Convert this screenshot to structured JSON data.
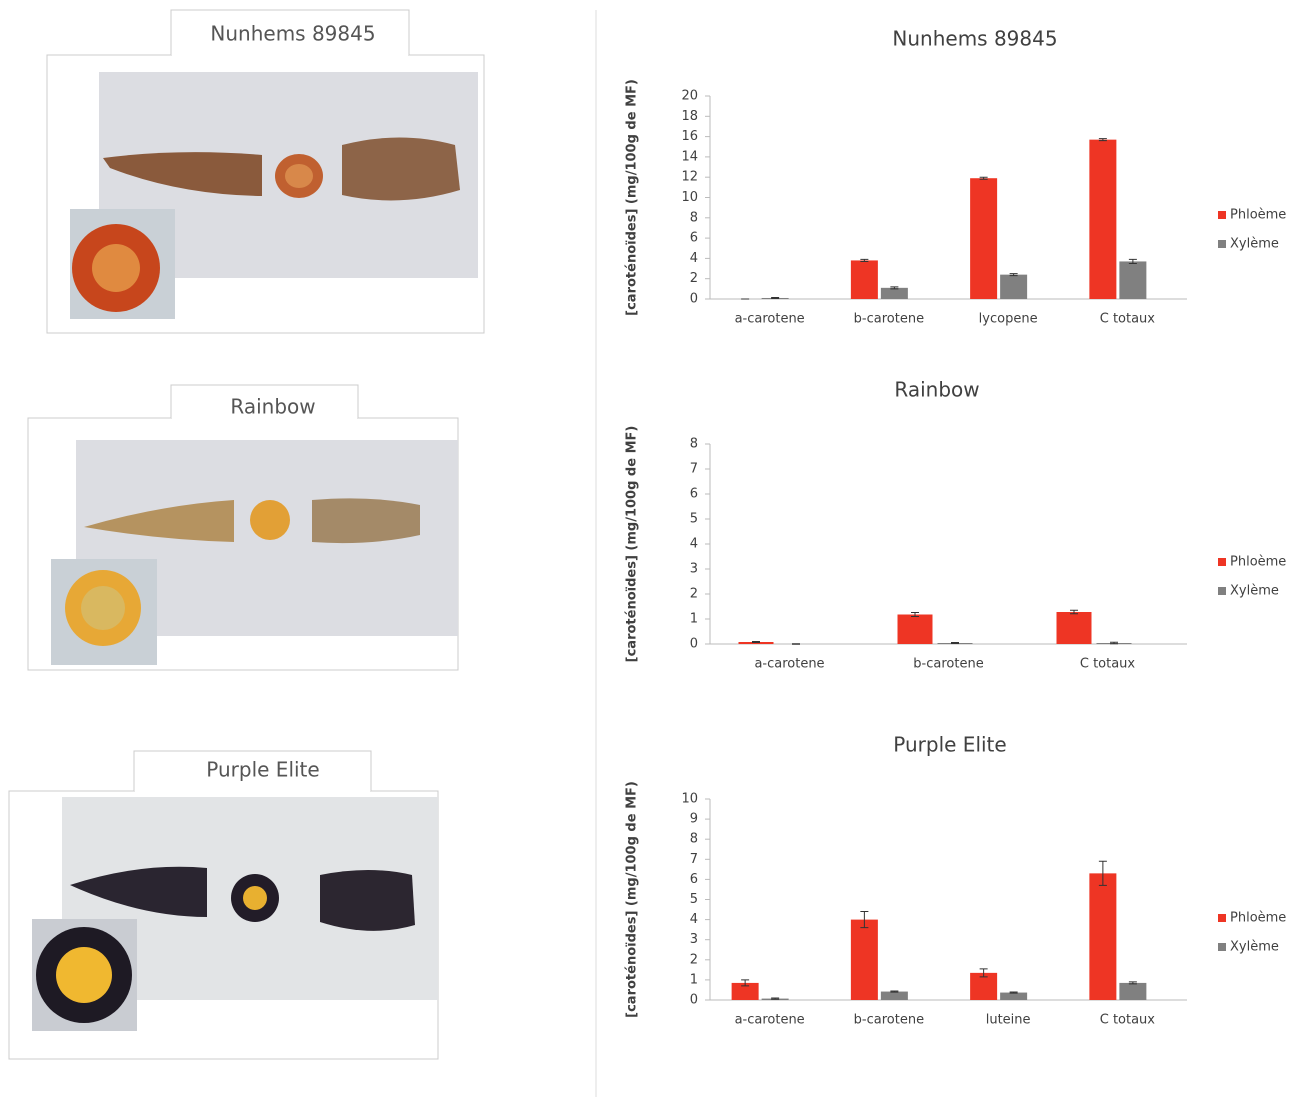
{
  "photos": [
    {
      "label": "Nunhems 89845"
    },
    {
      "label": "Rainbow"
    },
    {
      "label": "Purple Elite"
    }
  ],
  "chart_data": [
    {
      "type": "bar",
      "title": "Nunhems 89845",
      "y_label": "[caroténoïdes] (mg/100g de MF)",
      "categories": [
        "a-carotene",
        "b-carotene",
        "lycopene",
        "C totaux"
      ],
      "series": [
        {
          "name": "Phloème",
          "color": "#ee3524",
          "values": [
            0,
            3.8,
            11.9,
            15.7
          ],
          "errors": [
            0,
            0.1,
            0.1,
            0.1
          ]
        },
        {
          "name": "Xylème",
          "color": "#808080",
          "values": [
            0.1,
            1.1,
            2.4,
            3.7
          ],
          "errors": [
            0.05,
            0.1,
            0.1,
            0.2
          ]
        }
      ],
      "ylim": [
        0,
        20
      ],
      "yticks": [
        0,
        2,
        4,
        6,
        8,
        10,
        12,
        14,
        16,
        18,
        20
      ],
      "legend": "right"
    },
    {
      "type": "bar",
      "title": "Rainbow",
      "y_label": "[caroténoïdes] (mg/100g de MF)",
      "categories": [
        "a-carotene",
        "b-carotene",
        "C totaux"
      ],
      "series": [
        {
          "name": "Phloème",
          "color": "#ee3524",
          "values": [
            0.08,
            1.18,
            1.28
          ],
          "errors": [
            0.02,
            0.08,
            0.07
          ]
        },
        {
          "name": "Xylème",
          "color": "#808080",
          "values": [
            0,
            0.04,
            0.04
          ],
          "errors": [
            0.01,
            0.02,
            0.03
          ]
        }
      ],
      "ylim": [
        0,
        8
      ],
      "yticks": [
        0,
        1,
        2,
        3,
        4,
        5,
        6,
        7,
        8
      ],
      "legend": "right"
    },
    {
      "type": "bar",
      "title": "Purple Elite",
      "y_label": "[caroténoïdes] (mg/100g de MF)",
      "categories": [
        "a-carotene",
        "b-carotene",
        "luteine",
        "C totaux"
      ],
      "series": [
        {
          "name": "Phloème",
          "color": "#ee3524",
          "values": [
            0.85,
            4.0,
            1.35,
            6.3
          ],
          "errors": [
            0.15,
            0.4,
            0.2,
            0.6
          ]
        },
        {
          "name": "Xylème",
          "color": "#808080",
          "values": [
            0.07,
            0.42,
            0.37,
            0.85
          ],
          "errors": [
            0.03,
            0.03,
            0.03,
            0.05
          ]
        }
      ],
      "ylim": [
        0,
        10
      ],
      "yticks": [
        0,
        1,
        2,
        3,
        4,
        5,
        6,
        7,
        8,
        9,
        10
      ],
      "legend": "right"
    }
  ]
}
